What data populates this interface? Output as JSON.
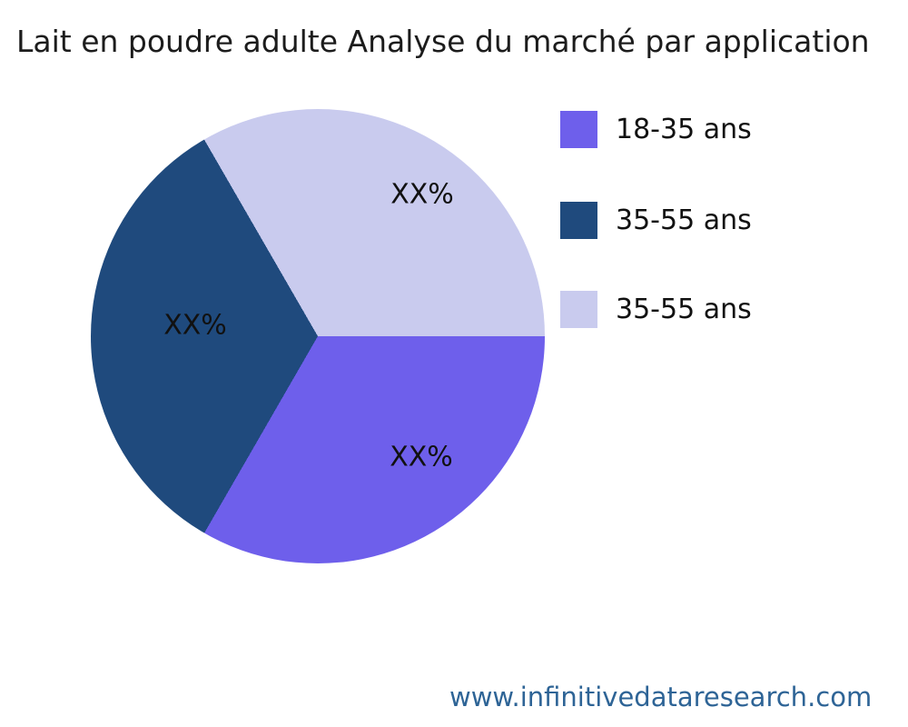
{
  "title": "Lait en poudre adulte Analyse du marché par application",
  "chart_data": {
    "type": "pie",
    "title": "Lait en poudre adulte Analyse du marché par application",
    "slices": [
      {
        "legend_label": "18-35 ans",
        "data_label": "XX%",
        "value_pct": 33.33,
        "color": "#6e5feb"
      },
      {
        "legend_label": "35-55 ans",
        "data_label": "XX%",
        "value_pct": 33.33,
        "color": "#1f4a7d"
      },
      {
        "legend_label": "35-55 ans",
        "data_label": "XX%",
        "value_pct": 33.34,
        "color": "#c9cbee"
      }
    ],
    "start_angle": "east",
    "direction": "clockwise",
    "legend_position": "upper right",
    "data_labels_placeholder": true
  },
  "footer": {
    "website": "www.infinitivedataresearch.com",
    "color": "#2e6496"
  }
}
